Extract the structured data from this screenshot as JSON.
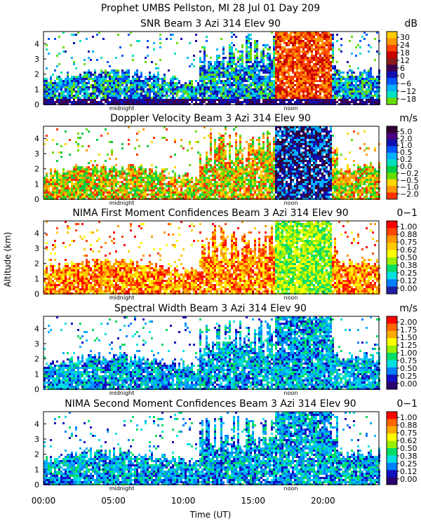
{
  "title": "Prophet  UMBS Pellston, MI  28 Jul 01 Day 209",
  "y_axis_label": "Altitude (km)",
  "x_axis_label": "Time (UT)",
  "x_ticks": [
    "00:00",
    "05:00",
    "10:00",
    "15:00",
    "20:00"
  ],
  "day_markers": {
    "midnight": "midnight",
    "noon": "noon"
  },
  "panels": [
    {
      "title": "SNR Beam 3 Azi 314 Elev 90",
      "unit": "dB",
      "colorbar_labels": [
        "30",
        "24",
        "18",
        "12",
        "6",
        "0",
        "−6",
        "−12",
        "−18"
      ],
      "colorbar_colors": [
        "#ffcc00",
        "#ff9900",
        "#ff4500",
        "#cc0000",
        "#8b1a1a",
        "#3d0050",
        "#1010b0",
        "#0055ff",
        "#00b0ff",
        "#00e0c0",
        "#66dd00"
      ],
      "palette": [
        "#66dd00",
        "#00e0c0",
        "#00b0ff",
        "#0055ff",
        "#1010b0",
        "#3d0050",
        "#8b1a1a",
        "#cc0000",
        "#ff4500",
        "#ff9900"
      ]
    },
    {
      "title": "Doppler Velocity Beam 3 Azi 314 Elev 90",
      "unit": "m/s",
      "colorbar_labels": [
        "5.0",
        "2.0",
        "1.0",
        "0.5",
        "0.2",
        "0.0",
        "−0.2",
        "−0.5",
        "−1.0",
        "−2.0"
      ],
      "colorbar_colors": [
        "#330033",
        "#4b0082",
        "#1010b0",
        "#0055ff",
        "#00b0ff",
        "#00e0c0",
        "#00cc44",
        "#66dd00",
        "#ffd700",
        "#ff9900",
        "#ff3300"
      ],
      "palette": [
        "#66dd00",
        "#00cc44",
        "#ffd700",
        "#ff9900",
        "#ff3300",
        "#00e0c0",
        "#00b0ff",
        "#1010b0",
        "#330033"
      ]
    },
    {
      "title": "NIMA First Moment Confidences Beam 3 Azi 314 Elev 90",
      "unit": "0−1",
      "colorbar_labels": [
        "1.00",
        "0.88",
        "0.75",
        "0.62",
        "0.50",
        "0.38",
        "0.25",
        "0.12",
        "0.00"
      ],
      "colorbar_colors": [
        "#ff0000",
        "#ff4500",
        "#ff9900",
        "#ffcc00",
        "#ffff00",
        "#99ee00",
        "#00dd66",
        "#00e0e0",
        "#0080ff",
        "#2020a0"
      ],
      "palette": [
        "#ff0000",
        "#ff4500",
        "#ff9900",
        "#ffcc00",
        "#ffff00",
        "#99ee00",
        "#00dd66"
      ]
    },
    {
      "title": "Spectral Width Beam 3 Azi 314 Elev 90",
      "unit": "m/s",
      "colorbar_labels": [
        "2.00",
        "1.75",
        "1.50",
        "1.25",
        "1.00",
        "0.75",
        "0.50",
        "0.25",
        "0.00"
      ],
      "colorbar_colors": [
        "#ff0000",
        "#ff6600",
        "#ffaa00",
        "#ffff00",
        "#99ee00",
        "#00dd66",
        "#00e0e0",
        "#0080ff",
        "#1010c0",
        "#2a0070"
      ],
      "palette": [
        "#1010c0",
        "#0080ff",
        "#00b0ff",
        "#00e0e0",
        "#00dd66",
        "#99ee00",
        "#ffff00",
        "#ffaa00"
      ]
    },
    {
      "title": "NIMA Second Moment Confidences Beam 3 Azi 314 Elev 90",
      "unit": "0−1",
      "colorbar_labels": [
        "1.00",
        "0.88",
        "0.75",
        "0.62",
        "0.50",
        "0.38",
        "0.25",
        "0.12",
        "0.00"
      ],
      "colorbar_colors": [
        "#ff0000",
        "#ff6600",
        "#ffaa00",
        "#ffff00",
        "#99ee00",
        "#00dd66",
        "#00e0e0",
        "#0080ff",
        "#1010c0",
        "#2a0070"
      ],
      "palette": [
        "#1010c0",
        "#0080ff",
        "#00b0ff",
        "#00e0e0",
        "#00dd66",
        "#99ee00",
        "#ffff00",
        "#ffaa00"
      ]
    }
  ],
  "chart_data": {
    "type": "heatmap",
    "x_range_hours": [
      0,
      24
    ],
    "y_range_km": [
      0,
      4.8
    ],
    "y_ticks": [
      0,
      1,
      2,
      3,
      4
    ],
    "grid": false
  }
}
